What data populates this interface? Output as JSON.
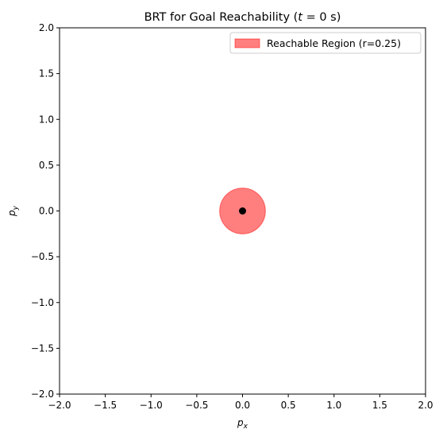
{
  "chart_data": {
    "type": "scatter",
    "title": "BRT for Goal Reachability (t = 0 s)",
    "title_prefix": "BRT for Goal Reachability (",
    "title_math": "t",
    "title_suffix": " = 0 s)",
    "xlabel": "p_x",
    "xlabel_main": "p",
    "xlabel_sub": "x",
    "ylabel": "p_y",
    "ylabel_main": "p",
    "ylabel_sub": "y",
    "xlim": [
      -2.0,
      2.0
    ],
    "ylim": [
      -2.0,
      2.0
    ],
    "xticks": [
      "−2.0",
      "−1.5",
      "−1.0",
      "−0.5",
      "0.0",
      "0.5",
      "1.0",
      "1.5",
      "2.0"
    ],
    "yticks": [
      "−2.0",
      "−1.5",
      "−1.0",
      "−0.5",
      "0.0",
      "0.5",
      "1.0",
      "1.5",
      "2.0"
    ],
    "grid": false,
    "legend_position": "top-right",
    "region": {
      "label": "Reachable Region (r=0.25)",
      "center": [
        0.0,
        0.0
      ],
      "radius": 0.25,
      "color": "#ff0000",
      "alpha": 0.5
    },
    "point": {
      "x": 0.0,
      "y": 0.0,
      "color": "#000000"
    }
  }
}
